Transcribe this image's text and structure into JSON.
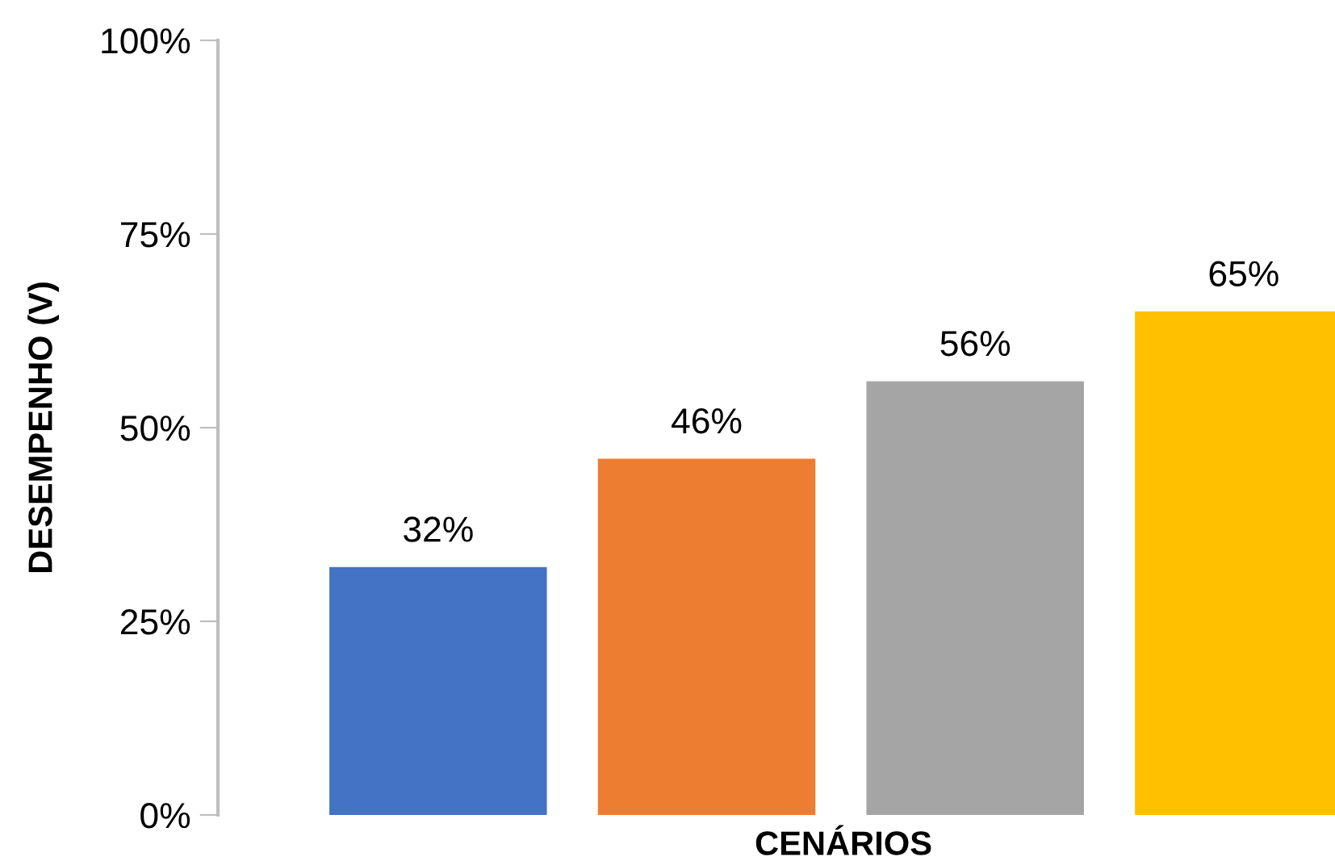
{
  "chart_data": {
    "type": "bar",
    "xlabel": "CENÁRIOS",
    "ylabel": "DESEMPENHO (V)",
    "categories": [
      null,
      null,
      null,
      null
    ],
    "values": [
      32,
      46,
      56,
      65
    ],
    "colors": [
      "#4472c4",
      "#ed7d31",
      "#a5a5a5",
      "#ffc000"
    ],
    "value_labels": [
      "32%",
      "46%",
      "56%",
      "65%"
    ],
    "ylim": [
      0,
      100
    ],
    "yticks": [
      {
        "value": 0,
        "label": "0%"
      },
      {
        "value": 25,
        "label": "25%"
      },
      {
        "value": 50,
        "label": "50%"
      },
      {
        "value": 75,
        "label": "75%"
      },
      {
        "value": 100,
        "label": "100%"
      }
    ],
    "grid": false,
    "legend": false
  }
}
